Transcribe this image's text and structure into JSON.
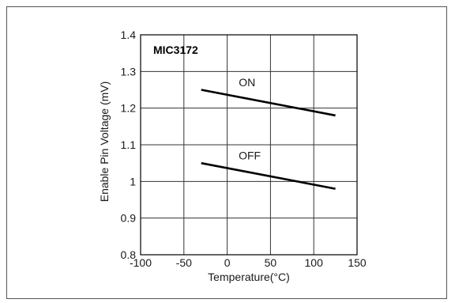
{
  "chart_data": {
    "type": "line",
    "title": "MIC3172",
    "xlabel": "Temperature(°C)",
    "ylabel": "Enable Pin Voltage (mV)",
    "xlim": [
      -100,
      150
    ],
    "ylim": [
      0.8,
      1.4
    ],
    "xticks": [
      "-100",
      "-50",
      "0",
      "50",
      "100",
      "150"
    ],
    "yticks": [
      "0.8",
      "0.9",
      "1",
      "1.1",
      "1.2",
      "1.3",
      "1.4"
    ],
    "grid": true,
    "series": [
      {
        "name": "ON",
        "x": [
          -30,
          125
        ],
        "y": [
          1.25,
          1.18
        ]
      },
      {
        "name": "OFF",
        "x": [
          -30,
          125
        ],
        "y": [
          1.05,
          0.98
        ]
      }
    ],
    "annotations": [
      {
        "text": "ON",
        "x": 23,
        "y": 1.26
      },
      {
        "text": "OFF",
        "x": 26,
        "y": 1.06
      }
    ]
  }
}
